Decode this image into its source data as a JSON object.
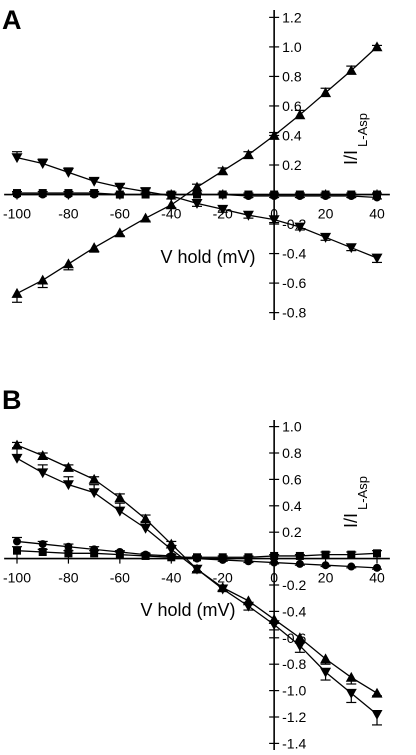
{
  "chart_data": [
    {
      "panel_label": "A",
      "type": "line",
      "xlabel": "V hold (mV)",
      "ylabel_main": "I/I",
      "ylabel_sub": "L-Asp",
      "xlim": [
        -105,
        45
      ],
      "ylim": [
        -0.85,
        1.25
      ],
      "x_ticks": [
        -100,
        -80,
        -60,
        -40,
        -20,
        0,
        20,
        40
      ],
      "y_ticks": [
        -0.8,
        -0.6,
        -0.4,
        -0.2,
        0.2,
        0.4,
        0.6,
        0.8,
        1.0,
        1.2
      ],
      "series": [
        {
          "marker": "triangle-up",
          "x": [
            -100,
            -90,
            -80,
            -70,
            -60,
            -50,
            -40,
            -30,
            -20,
            -10,
            0,
            10,
            20,
            30,
            40
          ],
          "y": [
            -0.67,
            -0.58,
            -0.47,
            -0.36,
            -0.26,
            -0.16,
            -0.07,
            0.05,
            0.16,
            0.27,
            0.4,
            0.54,
            0.69,
            0.84,
            1.0
          ],
          "err": [
            0.06,
            0.05,
            0.04,
            0.03,
            0.02,
            0.02,
            0.02,
            0.02,
            0.02,
            0.02,
            0.02,
            0.03,
            0.03,
            0.03,
            0.01
          ]
        },
        {
          "marker": "triangle-down",
          "x": [
            -100,
            -90,
            -80,
            -70,
            -60,
            -50,
            -40,
            -30,
            -20,
            -10,
            0,
            10,
            20,
            30,
            40
          ],
          "y": [
            0.25,
            0.21,
            0.15,
            0.09,
            0.05,
            0.02,
            -0.01,
            -0.06,
            -0.1,
            -0.14,
            -0.17,
            -0.22,
            -0.29,
            -0.36,
            -0.43
          ],
          "err": [
            0.04,
            0.03,
            0.03,
            0.02,
            0.02,
            0.02,
            0.02,
            0.02,
            0.02,
            0.02,
            0.02,
            0.02,
            0.02,
            0.02,
            0.03
          ]
        },
        {
          "marker": "square",
          "x": [
            -100,
            -90,
            -80,
            -70,
            -60,
            -50,
            -40,
            -30,
            -20,
            -10,
            0,
            10,
            20,
            30,
            40
          ],
          "y": [
            0.01,
            0.01,
            0.01,
            0.01,
            0.0,
            0.0,
            0.0,
            0.0,
            0.0,
            0.0,
            0.0,
            0.0,
            0.0,
            0.0,
            0.0
          ],
          "err": [
            0.01,
            0.01,
            0.01,
            0.01,
            0.01,
            0.01,
            0.01,
            0.01,
            0.01,
            0.01,
            0.01,
            0.01,
            0.01,
            0.01,
            0.01
          ]
        },
        {
          "marker": "circle",
          "x": [
            -100,
            -90,
            -80,
            -70,
            -60,
            -50,
            -40,
            -30,
            -20,
            -10,
            0,
            10,
            20,
            30,
            40
          ],
          "y": [
            0.0,
            0.0,
            0.0,
            0.0,
            0.0,
            0.0,
            0.0,
            0.0,
            0.0,
            -0.01,
            -0.01,
            -0.01,
            -0.01,
            -0.01,
            -0.02
          ],
          "err": [
            0.01,
            0.01,
            0.01,
            0.01,
            0.01,
            0.01,
            0.01,
            0.01,
            0.01,
            0.01,
            0.01,
            0.01,
            0.01,
            0.01,
            0.01
          ]
        }
      ]
    },
    {
      "panel_label": "B",
      "type": "line",
      "xlabel": "V hold (mV)",
      "ylabel_main": "I/I",
      "ylabel_sub": "L-Asp",
      "xlim": [
        -105,
        45
      ],
      "ylim": [
        -1.45,
        1.05
      ],
      "x_ticks": [
        -100,
        -80,
        -60,
        -40,
        -20,
        0,
        20,
        40
      ],
      "y_ticks": [
        -1.4,
        -1.2,
        -1.0,
        -0.8,
        -0.6,
        -0.4,
        -0.2,
        0.2,
        0.4,
        0.6,
        0.8,
        1.0
      ],
      "series": [
        {
          "marker": "triangle-up",
          "x": [
            -100,
            -90,
            -80,
            -70,
            -60,
            -50,
            -40,
            -30,
            -20,
            -10,
            0,
            10,
            20,
            30,
            40
          ],
          "y": [
            0.86,
            0.78,
            0.69,
            0.6,
            0.46,
            0.3,
            0.11,
            -0.08,
            -0.22,
            -0.32,
            -0.46,
            -0.6,
            -0.76,
            -0.9,
            -1.02
          ],
          "err": [
            0.02,
            0.02,
            0.02,
            0.02,
            0.03,
            0.03,
            0.02,
            0.02,
            0.02,
            0.02,
            0.03,
            0.04,
            0.04,
            0.05,
            0.02
          ]
        },
        {
          "marker": "triangle-down",
          "x": [
            -100,
            -90,
            -80,
            -70,
            -60,
            -50,
            -40,
            -30,
            -20,
            -10,
            0,
            10,
            20,
            30,
            40
          ],
          "y": [
            0.76,
            0.65,
            0.56,
            0.5,
            0.36,
            0.23,
            0.07,
            -0.08,
            -0.23,
            -0.36,
            -0.5,
            -0.66,
            -0.86,
            -1.02,
            -1.18
          ],
          "err": [
            0.08,
            0.06,
            0.06,
            0.06,
            0.06,
            0.05,
            0.03,
            0.02,
            0.02,
            0.03,
            0.04,
            0.05,
            0.06,
            0.07,
            0.08
          ]
        },
        {
          "marker": "square",
          "x": [
            -100,
            -90,
            -80,
            -70,
            -60,
            -50,
            -40,
            -30,
            -20,
            -10,
            0,
            10,
            20,
            30,
            40
          ],
          "y": [
            0.06,
            0.05,
            0.04,
            0.04,
            0.03,
            0.02,
            0.01,
            0.01,
            0.01,
            0.01,
            0.02,
            0.02,
            0.03,
            0.03,
            0.04
          ],
          "err": [
            0.03,
            0.02,
            0.02,
            0.02,
            0.02,
            0.01,
            0.01,
            0.01,
            0.01,
            0.01,
            0.01,
            0.01,
            0.02,
            0.02,
            0.02
          ]
        },
        {
          "marker": "circle",
          "x": [
            -100,
            -90,
            -80,
            -70,
            -60,
            -50,
            -40,
            -30,
            -20,
            -10,
            0,
            10,
            20,
            30,
            40
          ],
          "y": [
            0.13,
            0.11,
            0.09,
            0.07,
            0.05,
            0.03,
            0.02,
            0.0,
            -0.01,
            -0.02,
            -0.03,
            -0.04,
            -0.05,
            -0.06,
            -0.07
          ],
          "err": [
            0.03,
            0.02,
            0.02,
            0.02,
            0.01,
            0.01,
            0.01,
            0.01,
            0.01,
            0.01,
            0.01,
            0.01,
            0.01,
            0.01,
            0.01
          ]
        }
      ]
    }
  ]
}
